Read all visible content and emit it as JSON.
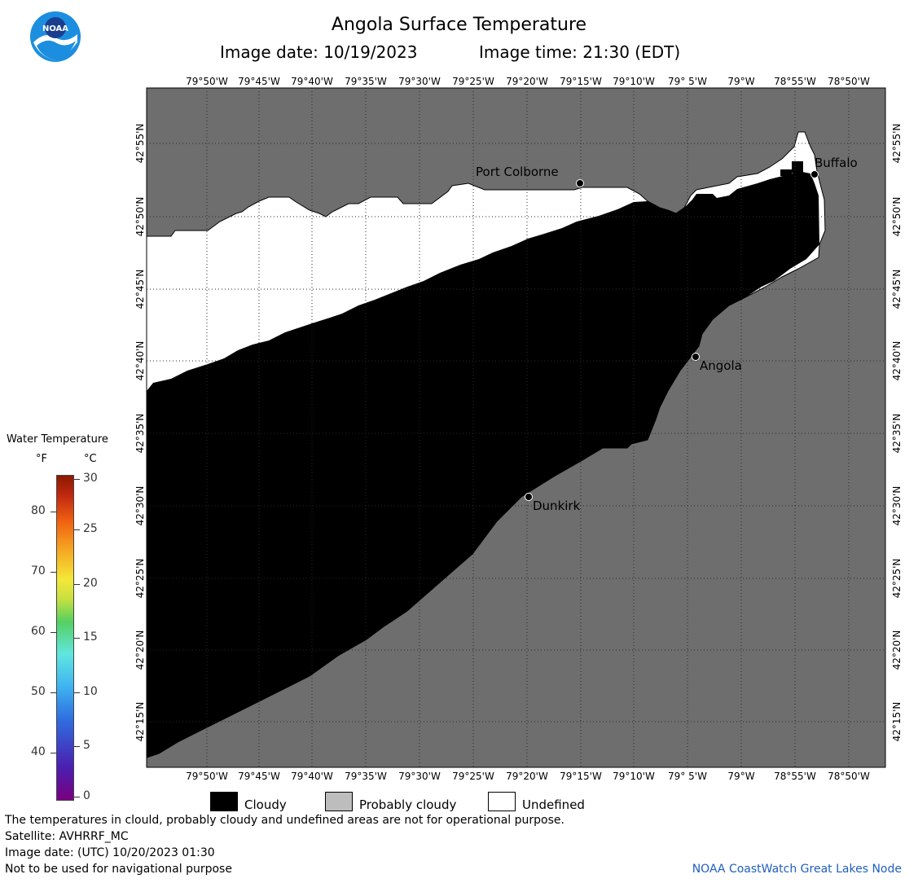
{
  "header": {
    "title": "Angola Surface Temperature",
    "image_date": "Image date: 10/19/2023",
    "image_time": "Image time: 21:30 (EDT)"
  },
  "map": {
    "lon_labels": [
      "79°50'W",
      "79°45'W",
      "79°40'W",
      "79°35'W",
      "79°30'W",
      "79°25'W",
      "79°20'W",
      "79°15'W",
      "79°10'W",
      "79° 5'W",
      "79°W",
      "78°55'W",
      "78°50'W"
    ],
    "lat_labels": [
      "42°55'N",
      "42°50'N",
      "42°45'N",
      "42°40'N",
      "42°35'N",
      "42°30'N",
      "42°25'N",
      "42°20'N",
      "42°15'N"
    ],
    "cities": [
      {
        "name": "Port Colborne"
      },
      {
        "name": "Buffalo"
      },
      {
        "name": "Angola"
      },
      {
        "name": "Dunkirk"
      }
    ],
    "colors": {
      "land": "#6e6e6e",
      "cloudy": "#000000",
      "undefined": "#ffffff",
      "grid": "#3a3a3a"
    }
  },
  "colorbar": {
    "title": "Water Temperature",
    "unit_f": "°F",
    "unit_c": "°C",
    "f_ticks": [
      "80",
      "70",
      "60",
      "50",
      "40"
    ],
    "c_ticks": [
      "30",
      "25",
      "20",
      "15",
      "10",
      "5",
      "0"
    ]
  },
  "legend": {
    "cloudy": "Cloudy",
    "probably_cloudy": "Probably cloudy",
    "undefined": "Undefined"
  },
  "footer": {
    "line1": "The temperatures in clould, probably cloudy and undefined areas are not for operational purpose.",
    "line2": "Satellite: AVHRRF_MC",
    "line3": "Image date: (UTC) 10/20/2023  01:30",
    "line4": "Not to be used for navigational purpose",
    "credit": "NOAA CoastWatch Great Lakes Node"
  },
  "logo": {
    "text": "NOAA"
  }
}
